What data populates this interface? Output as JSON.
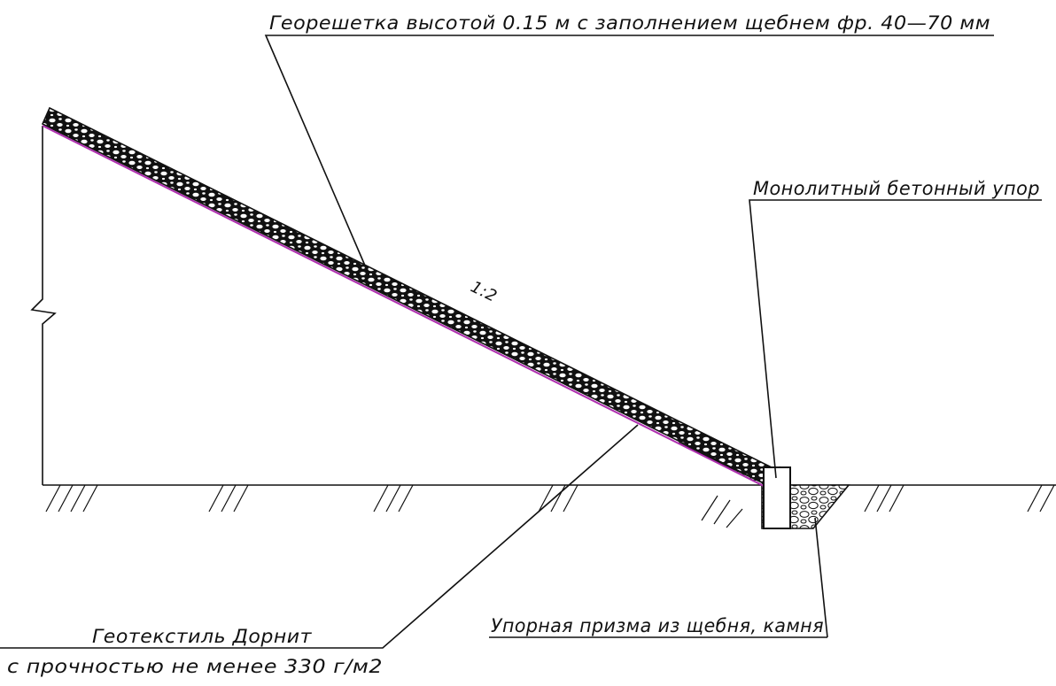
{
  "labels": {
    "georeshetka": "Георешетка высотой 0.15 м с заполнением щебнем фр. 40—70 мм",
    "upor": "Монолитный бетонный упор",
    "slope": "1:2",
    "geotextile_line1": "Геотекстиль Дорнит",
    "geotextile_line2": "с прочностью не менее 330 г/м2",
    "prisma": "Упорная призма из щебня, камня"
  },
  "colors": {
    "geotextile": "#b02fb0",
    "line": "#111111",
    "fill": "#1a1a1a"
  }
}
